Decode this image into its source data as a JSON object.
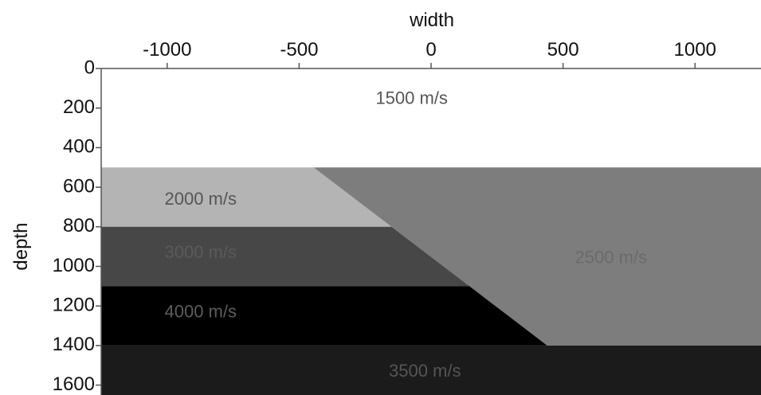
{
  "axes": {
    "x": {
      "title": "width",
      "position": "top",
      "range": [
        -1250,
        1250
      ],
      "ticks": [
        -1000,
        -500,
        0,
        500,
        1000
      ],
      "tick_labels": [
        "-1000",
        "-500",
        "0",
        "500",
        "1000"
      ]
    },
    "y": {
      "title": "depth",
      "position": "left",
      "inverted": true,
      "range": [
        0,
        1650
      ],
      "ticks": [
        0,
        200,
        400,
        600,
        800,
        1000,
        1200,
        1400,
        1600
      ],
      "tick_labels": [
        "0",
        "200",
        "400",
        "600",
        "800",
        "1000",
        "1200",
        "1400",
        "1600"
      ]
    }
  },
  "layers": [
    {
      "id": "water",
      "label": "1500 m/s",
      "color": "#ffffff",
      "label_color": "#555555",
      "polygon": [
        [
          -1250,
          0
        ],
        [
          1250,
          0
        ],
        [
          1250,
          500
        ],
        [
          -1250,
          500
        ]
      ],
      "label_at": [
        -210,
        155
      ]
    },
    {
      "id": "layer-2000",
      "label": "2000 m/s",
      "color": "#b4b4b4",
      "label_color": "#555555",
      "polygon": [
        [
          -1250,
          500
        ],
        [
          -445,
          500
        ],
        [
          -150,
          800
        ],
        [
          -1250,
          800
        ]
      ],
      "label_at": [
        -1010,
        665
      ]
    },
    {
      "id": "layer-2500",
      "label": "2500 m/s",
      "color": "#7d7d7d",
      "label_color": "#6a6a6a",
      "polygon": [
        [
          -445,
          500
        ],
        [
          1250,
          500
        ],
        [
          1250,
          1400
        ],
        [
          440,
          1400
        ]
      ],
      "label_at": [
        545,
        960
      ]
    },
    {
      "id": "layer-3000",
      "label": "3000 m/s",
      "color": "#474747",
      "label_color": "#5a5a5a",
      "polygon": [
        [
          -1250,
          800
        ],
        [
          -150,
          800
        ],
        [
          145,
          1100
        ],
        [
          -1250,
          1100
        ]
      ],
      "label_at": [
        -1010,
        935
      ]
    },
    {
      "id": "layer-4000",
      "label": "4000 m/s",
      "color": "#000000",
      "label_color": "#5c5c5c",
      "polygon": [
        [
          -1250,
          1100
        ],
        [
          145,
          1100
        ],
        [
          440,
          1400
        ],
        [
          -1250,
          1400
        ]
      ],
      "label_at": [
        -1010,
        1235
      ]
    },
    {
      "id": "layer-3500",
      "label": "3500 m/s",
      "color": "#1b1b1b",
      "label_color": "#555555",
      "polygon": [
        [
          -1250,
          1400
        ],
        [
          1250,
          1400
        ],
        [
          1250,
          1650
        ],
        [
          -1250,
          1650
        ]
      ],
      "label_at": [
        -160,
        1535
      ]
    }
  ]
}
